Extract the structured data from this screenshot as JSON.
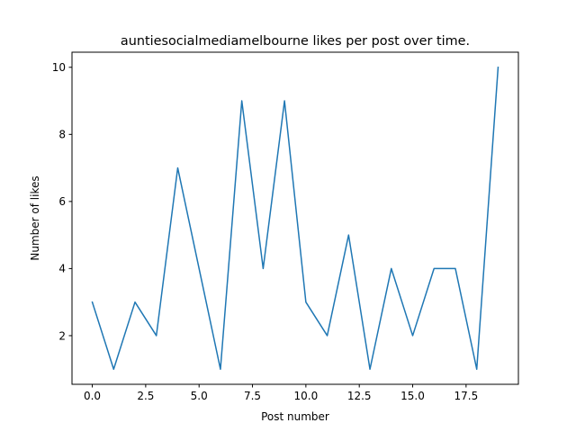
{
  "chart_data": {
    "type": "line",
    "title": "auntiesocialmediamelbourne likes per post over time.",
    "xlabel": "Post number",
    "ylabel": "Number of likes",
    "x": [
      0,
      1,
      2,
      3,
      4,
      5,
      6,
      7,
      8,
      9,
      10,
      11,
      12,
      13,
      14,
      15,
      16,
      17,
      18,
      19
    ],
    "series": [
      {
        "values": [
          3,
          1,
          3,
          2,
          7,
          4,
          1,
          9,
          4,
          9,
          3,
          2,
          5,
          1,
          4,
          2,
          4,
          4,
          1,
          10
        ],
        "color": "#1f77b4"
      }
    ],
    "xlim": [
      -0.95,
      19.95
    ],
    "ylim": [
      0.55,
      10.45
    ],
    "xticks": [
      0.0,
      2.5,
      5.0,
      7.5,
      10.0,
      12.5,
      15.0,
      17.5
    ],
    "xtick_labels": [
      "0.0",
      "2.5",
      "5.0",
      "7.5",
      "10.0",
      "12.5",
      "15.0",
      "17.5"
    ],
    "yticks": [
      2,
      4,
      6,
      8,
      10
    ],
    "ytick_labels": [
      "2",
      "4",
      "6",
      "8",
      "10"
    ],
    "grid": false,
    "legend": false
  }
}
